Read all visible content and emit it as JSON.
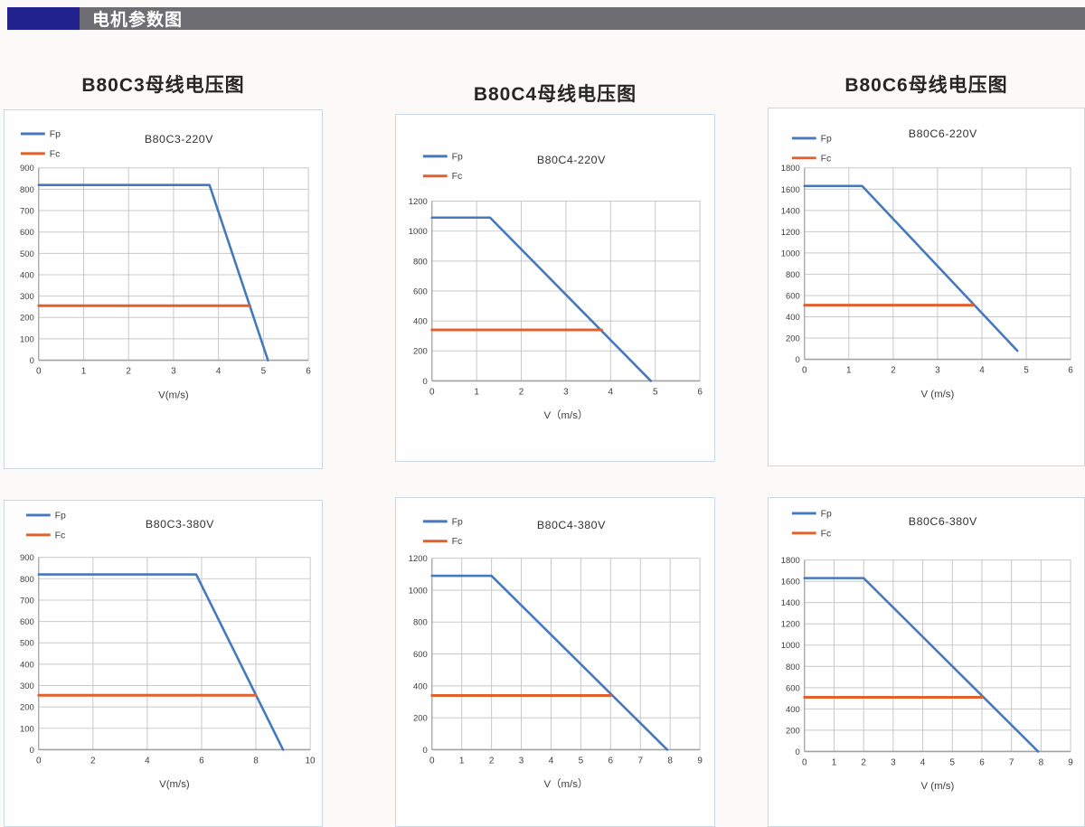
{
  "header": {
    "title": "电机参数图"
  },
  "colors": {
    "fp": "#4678be",
    "fc": "#e2602c",
    "grid": "#c8c8c8",
    "axis": "#a2a2a2",
    "tick_text": "#404040",
    "title_text": "#333333",
    "card_border": "#ccd7e5",
    "header_accent": "#21218e",
    "header_bar": "#6d6d72"
  },
  "group_titles": [
    "B80C3母线电压图",
    "B80C4母线电压图",
    "B80C6母线电压图"
  ],
  "chart_data": [
    {
      "type": "line",
      "title": "B80C3-220V",
      "xlabel": "V(m/s)",
      "xlim": [
        0,
        6
      ],
      "xticks": [
        0,
        1,
        2,
        3,
        4,
        5,
        6
      ],
      "ylim": [
        0,
        900
      ],
      "yticks": [
        0,
        100,
        200,
        300,
        400,
        500,
        600,
        700,
        800,
        900
      ],
      "grid": true,
      "legend_position": "top-left",
      "legend": [
        "Fp",
        "Fc"
      ],
      "series": [
        {
          "name": "Fp",
          "points": [
            [
              0,
              820
            ],
            [
              3.8,
              820
            ],
            [
              5.1,
              0
            ]
          ]
        },
        {
          "name": "Fc",
          "points": [
            [
              0,
              255
            ],
            [
              4.7,
              255
            ]
          ]
        }
      ]
    },
    {
      "type": "line",
      "title": "B80C4-220V",
      "xlabel": "V（m/s）",
      "xlim": [
        0,
        6
      ],
      "xticks": [
        0,
        1,
        2,
        3,
        4,
        5,
        6
      ],
      "ylim": [
        0,
        1200
      ],
      "yticks": [
        0,
        200,
        400,
        600,
        800,
        1000,
        1200
      ],
      "grid": true,
      "legend_position": "top-left",
      "legend": [
        "Fp",
        "Fc"
      ],
      "series": [
        {
          "name": "Fp",
          "points": [
            [
              0,
              1090
            ],
            [
              1.3,
              1090
            ],
            [
              4.9,
              0
            ]
          ]
        },
        {
          "name": "Fc",
          "points": [
            [
              0,
              340
            ],
            [
              3.8,
              340
            ]
          ]
        }
      ]
    },
    {
      "type": "line",
      "title": "B80C6-220V",
      "xlabel": "V (m/s)",
      "xlim": [
        0,
        6
      ],
      "xticks": [
        0,
        1,
        2,
        3,
        4,
        5,
        6
      ],
      "ylim": [
        0,
        1800
      ],
      "yticks": [
        0,
        200,
        400,
        600,
        800,
        1000,
        1200,
        1400,
        1600,
        1800
      ],
      "grid": true,
      "legend_position": "top-left",
      "legend": [
        "Fp",
        "Fc"
      ],
      "series": [
        {
          "name": "Fp",
          "points": [
            [
              0,
              1630
            ],
            [
              1.3,
              1630
            ],
            [
              4.8,
              80
            ]
          ]
        },
        {
          "name": "Fc",
          "points": [
            [
              0,
              510
            ],
            [
              3.8,
              510
            ]
          ]
        }
      ]
    },
    {
      "type": "line",
      "title": "B80C3-380V",
      "xlabel": "V(m/s)",
      "xlim": [
        0,
        10
      ],
      "xticks": [
        0,
        2,
        4,
        6,
        8,
        10
      ],
      "ylim": [
        0,
        900
      ],
      "yticks": [
        0,
        100,
        200,
        300,
        400,
        500,
        600,
        700,
        800,
        900
      ],
      "grid": true,
      "legend_position": "top-left",
      "legend": [
        "Fp",
        "Fc"
      ],
      "series": [
        {
          "name": "Fp",
          "points": [
            [
              0,
              820
            ],
            [
              5.8,
              820
            ],
            [
              9,
              0
            ]
          ]
        },
        {
          "name": "Fc",
          "points": [
            [
              0,
              255
            ],
            [
              8,
              255
            ]
          ]
        }
      ]
    },
    {
      "type": "line",
      "title": "B80C4-380V",
      "xlabel": "V（m/s）",
      "xlim": [
        0,
        9
      ],
      "xticks": [
        0,
        1,
        2,
        3,
        4,
        5,
        6,
        7,
        8,
        9
      ],
      "ylim": [
        0,
        1200
      ],
      "yticks": [
        0,
        200,
        400,
        600,
        800,
        1000,
        1200
      ],
      "grid": true,
      "legend_position": "top-left",
      "legend": [
        "Fp",
        "Fc"
      ],
      "series": [
        {
          "name": "Fp",
          "points": [
            [
              0,
              1090
            ],
            [
              2,
              1090
            ],
            [
              7.9,
              0
            ]
          ]
        },
        {
          "name": "Fc",
          "points": [
            [
              0,
              340
            ],
            [
              6,
              340
            ]
          ]
        }
      ]
    },
    {
      "type": "line",
      "title": "B80C6-380V",
      "xlabel": "V (m/s)",
      "xlim": [
        0,
        9
      ],
      "xticks": [
        0,
        1,
        2,
        3,
        4,
        5,
        6,
        7,
        8,
        9
      ],
      "ylim": [
        0,
        1800
      ],
      "yticks": [
        0,
        200,
        400,
        600,
        800,
        1000,
        1200,
        1400,
        1600,
        1800
      ],
      "grid": true,
      "legend_position": "top-left",
      "legend": [
        "Fp",
        "Fc"
      ],
      "series": [
        {
          "name": "Fp",
          "points": [
            [
              0,
              1630
            ],
            [
              2,
              1630
            ],
            [
              7.9,
              0
            ]
          ]
        },
        {
          "name": "Fc",
          "points": [
            [
              0,
              510
            ],
            [
              6,
              510
            ]
          ]
        }
      ]
    }
  ]
}
